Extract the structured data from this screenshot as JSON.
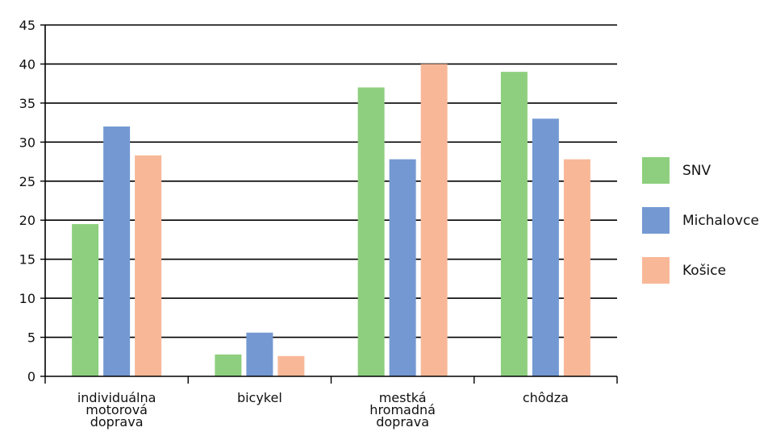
{
  "chart_data": {
    "type": "bar",
    "categories": [
      [
        "individuálna",
        "motorová",
        "doprava"
      ],
      [
        "bicykel"
      ],
      [
        "mestká",
        "hromadná",
        "doprava"
      ],
      [
        "chôdza"
      ]
    ],
    "series": [
      {
        "name": "SNV",
        "color": "#8dcf7e",
        "values": [
          19.5,
          2.8,
          37.0,
          39.0
        ]
      },
      {
        "name": "Michalovce",
        "color": "#7499d2",
        "values": [
          32.0,
          5.6,
          27.8,
          33.0
        ]
      },
      {
        "name": "Košice",
        "color": "#f8b898",
        "values": [
          28.3,
          2.6,
          40.0,
          27.8
        ]
      }
    ],
    "ylim": [
      0,
      45
    ],
    "yticks": [
      0,
      5,
      10,
      15,
      20,
      25,
      30,
      35,
      40,
      45
    ],
    "grid": true,
    "legend_position": "right"
  }
}
